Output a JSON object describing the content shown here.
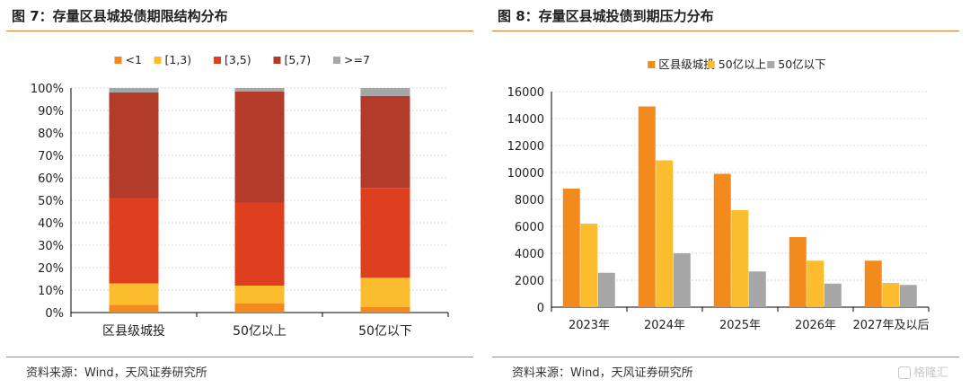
{
  "left": {
    "title": "图 7：存量区县城投债期限结构分布",
    "source": "资料来源：Wind，天风证券研究所"
  },
  "right": {
    "title": "图 8：存量区县城投债到期压力分布",
    "source": "资料来源：Wind，天风证券研究所"
  },
  "watermark": "格隆汇",
  "chart_data": [
    {
      "type": "bar",
      "stacked": true,
      "percent": true,
      "categories": [
        "区县级城投",
        "50亿以上",
        "50亿以下"
      ],
      "series": [
        {
          "name": "<1",
          "color": "#f28a1d",
          "values": [
            0.035,
            0.04,
            0.025
          ]
        },
        {
          "name": "[1,3)",
          "color": "#fbbd2e",
          "values": [
            0.095,
            0.08,
            0.13
          ]
        },
        {
          "name": "[3,5)",
          "color": "#de3f1e",
          "values": [
            0.38,
            0.37,
            0.4
          ]
        },
        {
          "name": "[5,7)",
          "color": "#b23b2a",
          "values": [
            0.47,
            0.495,
            0.41
          ]
        },
        {
          "name": ">=7",
          "color": "#a6a6a6",
          "values": [
            0.02,
            0.015,
            0.035
          ]
        }
      ],
      "yticks": [
        "0%",
        "10%",
        "20%",
        "30%",
        "40%",
        "50%",
        "60%",
        "70%",
        "80%",
        "90%",
        "100%"
      ],
      "ylim": [
        0,
        1
      ],
      "grid": true,
      "legend": "top-center"
    },
    {
      "type": "bar",
      "categories": [
        "2023年",
        "2024年",
        "2025年",
        "2026年",
        "2027年及以后"
      ],
      "series": [
        {
          "name": "区县级城投",
          "color": "#f28a1d",
          "values": [
            8800,
            14900,
            9900,
            5200,
            3450
          ]
        },
        {
          "name": "50亿以上",
          "color": "#fbbd2e",
          "values": [
            6200,
            10900,
            7200,
            3450,
            1800
          ]
        },
        {
          "name": "50亿以下",
          "color": "#a6a6a6",
          "values": [
            2550,
            4000,
            2650,
            1750,
            1650
          ]
        }
      ],
      "yticks": [
        "0",
        "2000",
        "4000",
        "6000",
        "8000",
        "10000",
        "12000",
        "14000",
        "16000"
      ],
      "ylim": [
        0,
        16000
      ],
      "grid": true,
      "legend": "top-center"
    }
  ]
}
